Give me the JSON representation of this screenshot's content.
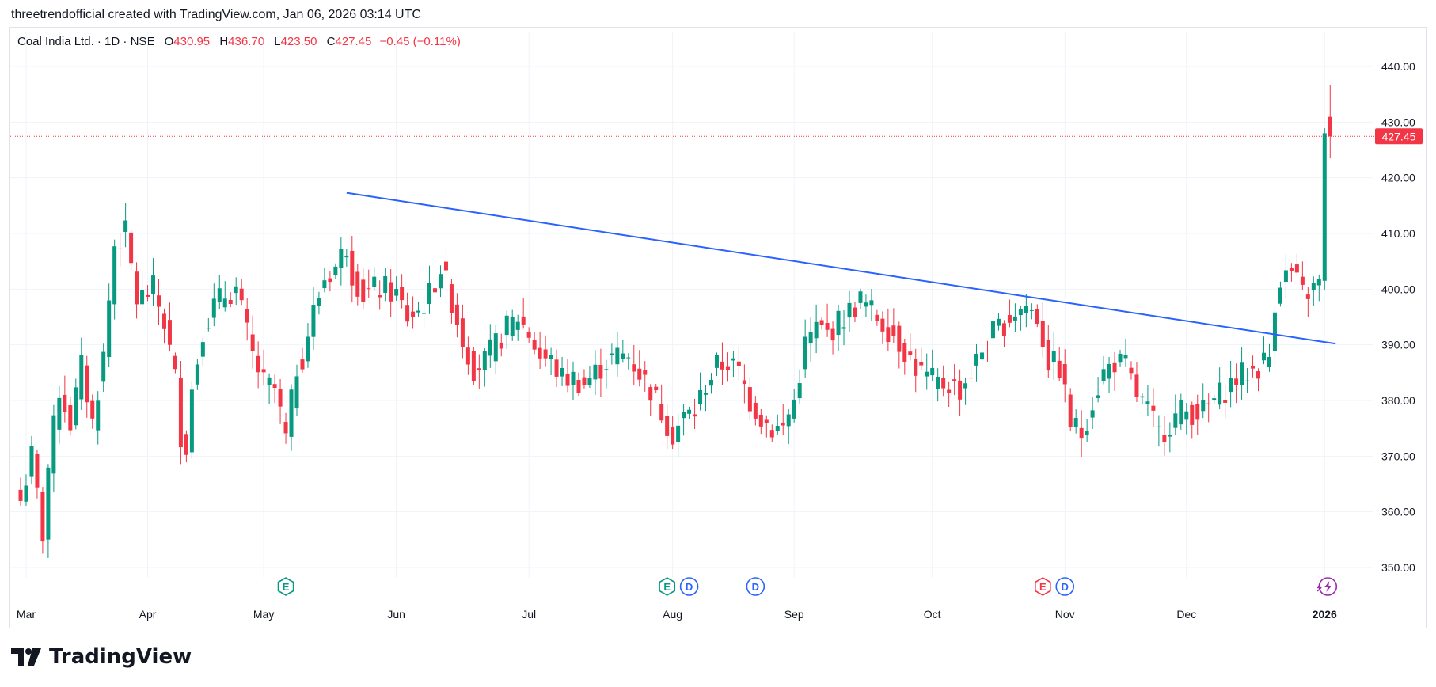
{
  "header": {
    "credit": "threetrendofficial created with TradingView.com, Jan 06, 2026 03:14 UTC"
  },
  "legend": {
    "symbol": "Coal India Ltd. · 1D · NSE",
    "open_label": "O",
    "open": "430.95",
    "high_label": "H",
    "high": "436.70",
    "low_label": "L",
    "low": "423.50",
    "close_label": "C",
    "close": "427.45",
    "change": "−0.45 (−0.11%)"
  },
  "brand": {
    "name": "TradingView"
  },
  "colors": {
    "up": "#089981",
    "down": "#f23645",
    "trendline": "#2962ff",
    "earnings": "#089981",
    "earnings_red": "#f23645",
    "dividend": "#2962ff",
    "event": "#9c27b0"
  },
  "chart_data": {
    "type": "candlestick",
    "y_ticks": [
      "440.00",
      "430.00",
      "420.00",
      "410.00",
      "400.00",
      "390.00",
      "380.00",
      "370.00",
      "360.00",
      "350.00"
    ],
    "ylim": [
      347.5,
      443.5
    ],
    "x_ticks": [
      {
        "label": "Mar",
        "i": 1
      },
      {
        "label": "Apr",
        "i": 23
      },
      {
        "label": "May",
        "i": 44
      },
      {
        "label": "Jun",
        "i": 68
      },
      {
        "label": "Jul",
        "i": 92
      },
      {
        "label": "Aug",
        "i": 118
      },
      {
        "label": "Sep",
        "i": 140
      },
      {
        "label": "Oct",
        "i": 165
      },
      {
        "label": "Nov",
        "i": 189
      },
      {
        "label": "Dec",
        "i": 211
      },
      {
        "label": "2026",
        "i": 236
      }
    ],
    "last_price": 427.45,
    "last_price_label": "427.45",
    "trendline": [
      {
        "i": 59,
        "y": 417.3
      },
      {
        "i": 238,
        "y": 390.2
      }
    ],
    "events": [
      {
        "type": "E",
        "i": 48,
        "color": "earnings"
      },
      {
        "type": "E",
        "i": 117,
        "color": "earnings"
      },
      {
        "type": "D",
        "i": 121,
        "color": "dividend"
      },
      {
        "type": "D",
        "i": 133,
        "color": "dividend"
      },
      {
        "type": "E",
        "i": 185,
        "color": "earnings_red"
      },
      {
        "type": "D",
        "i": 189,
        "color": "dividend"
      },
      {
        "type": "F",
        "i": 236,
        "color": "event"
      }
    ],
    "waypoints": [
      [
        0,
        362
      ],
      [
        2,
        370
      ],
      [
        4,
        356
      ],
      [
        5,
        368
      ],
      [
        7,
        382
      ],
      [
        9,
        376
      ],
      [
        11,
        386
      ],
      [
        13,
        376
      ],
      [
        15,
        388
      ],
      [
        17,
        408
      ],
      [
        19,
        410
      ],
      [
        21,
        398
      ],
      [
        24,
        400
      ],
      [
        26,
        394
      ],
      [
        28,
        384
      ],
      [
        29,
        374
      ],
      [
        30,
        372
      ],
      [
        31,
        382
      ],
      [
        33,
        393
      ],
      [
        35,
        397
      ],
      [
        37,
        399
      ],
      [
        39,
        400
      ],
      [
        42,
        388
      ],
      [
        44,
        383
      ],
      [
        46,
        382
      ],
      [
        48,
        373
      ],
      [
        50,
        386
      ],
      [
        51,
        388
      ],
      [
        53,
        396
      ],
      [
        55,
        402
      ],
      [
        57,
        404
      ],
      [
        59,
        408
      ],
      [
        60,
        403
      ],
      [
        62,
        399
      ],
      [
        64,
        400
      ],
      [
        66,
        400
      ],
      [
        68,
        399
      ],
      [
        70,
        395
      ],
      [
        72,
        396
      ],
      [
        74,
        399
      ],
      [
        76,
        404
      ],
      [
        78,
        398
      ],
      [
        80,
        391
      ],
      [
        82,
        386
      ],
      [
        84,
        387
      ],
      [
        86,
        390
      ],
      [
        88,
        393
      ],
      [
        90,
        395
      ],
      [
        92,
        392
      ],
      [
        94,
        388
      ],
      [
        96,
        387
      ],
      [
        98,
        384
      ],
      [
        100,
        384
      ],
      [
        102,
        383
      ],
      [
        104,
        385
      ],
      [
        106,
        387
      ],
      [
        108,
        388
      ],
      [
        110,
        388
      ],
      [
        112,
        385
      ],
      [
        114,
        382
      ],
      [
        116,
        378
      ],
      [
        118,
        374
      ],
      [
        120,
        377
      ],
      [
        122,
        378
      ],
      [
        124,
        383
      ],
      [
        126,
        386
      ],
      [
        128,
        387
      ],
      [
        130,
        385
      ],
      [
        132,
        380
      ],
      [
        134,
        377
      ],
      [
        136,
        375
      ],
      [
        138,
        375
      ],
      [
        140,
        380
      ],
      [
        142,
        390
      ],
      [
        144,
        393
      ],
      [
        146,
        392
      ],
      [
        148,
        394
      ],
      [
        150,
        396
      ],
      [
        152,
        398
      ],
      [
        154,
        396
      ],
      [
        156,
        394
      ],
      [
        158,
        392
      ],
      [
        160,
        389
      ],
      [
        162,
        386
      ],
      [
        164,
        384
      ],
      [
        166,
        383
      ],
      [
        168,
        383
      ],
      [
        170,
        382
      ],
      [
        172,
        385
      ],
      [
        174,
        389
      ],
      [
        176,
        392
      ],
      [
        178,
        394
      ],
      [
        180,
        396
      ],
      [
        182,
        397
      ],
      [
        184,
        395
      ],
      [
        186,
        387
      ],
      [
        188,
        386
      ],
      [
        190,
        376
      ],
      [
        192,
        374
      ],
      [
        194,
        380
      ],
      [
        196,
        385
      ],
      [
        198,
        387
      ],
      [
        200,
        386
      ],
      [
        202,
        381
      ],
      [
        204,
        378
      ],
      [
        206,
        374
      ],
      [
        208,
        376
      ],
      [
        210,
        378
      ],
      [
        212,
        378
      ],
      [
        214,
        378
      ],
      [
        216,
        380
      ],
      [
        218,
        382
      ],
      [
        220,
        384
      ],
      [
        222,
        385
      ],
      [
        224,
        386
      ],
      [
        226,
        388
      ],
      [
        227,
        398
      ],
      [
        228,
        402
      ],
      [
        230,
        403
      ],
      [
        232,
        399
      ],
      [
        234,
        400
      ],
      [
        235,
        401
      ],
      [
        236,
        428
      ],
      [
        237,
        427.45
      ]
    ]
  }
}
